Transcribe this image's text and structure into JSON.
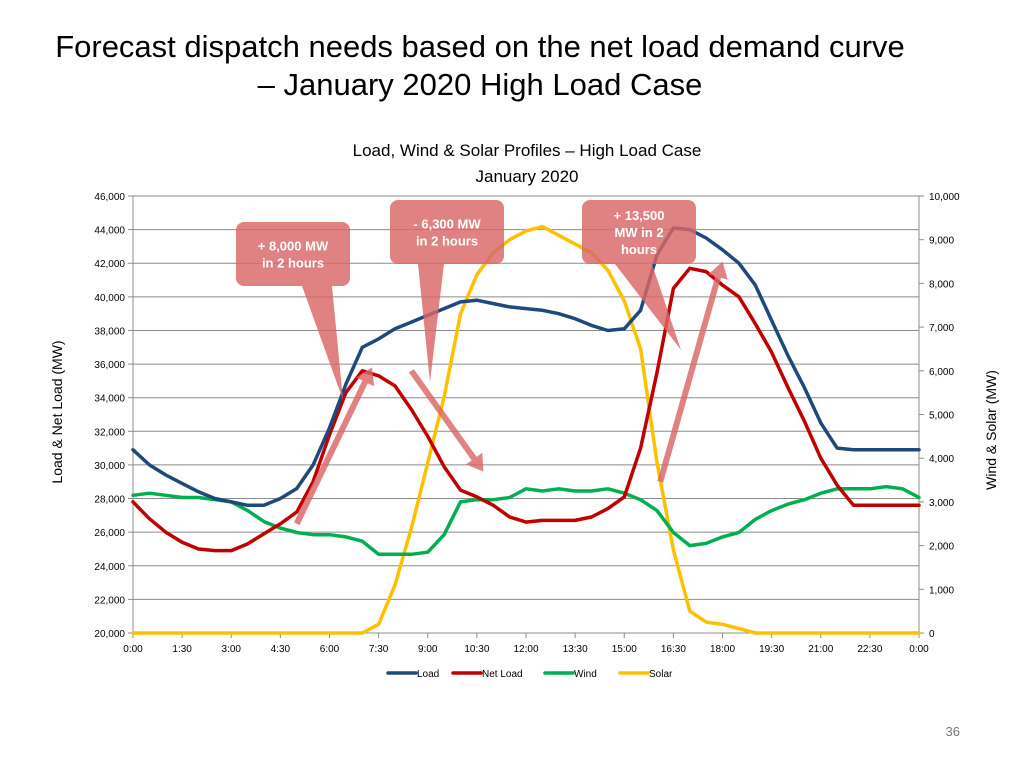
{
  "slide": {
    "title_line1": "Forecast dispatch needs based on the net load demand curve",
    "title_line2": "– January 2020 High Load Case",
    "page_number": "36"
  },
  "chart_data": {
    "type": "line",
    "title": "Load, Wind & Solar Profiles – High Load Case",
    "subtitle": "January 2020",
    "ylabel": "Load & Net Load (MW)",
    "y2label": "Wind & Solar (MW)",
    "ylim": [
      20000,
      46000
    ],
    "y2lim": [
      0,
      10000
    ],
    "yticks": [
      "20,000",
      "22,000",
      "24,000",
      "26,000",
      "28,000",
      "30,000",
      "32,000",
      "34,000",
      "36,000",
      "38,000",
      "40,000",
      "42,000",
      "44,000",
      "46,000"
    ],
    "y2ticks": [
      "0",
      "1,000",
      "2,000",
      "3,000",
      "4,000",
      "5,000",
      "6,000",
      "7,000",
      "8,000",
      "9,000",
      "10,000"
    ],
    "xticks": [
      "0:00",
      "1:30",
      "3:00",
      "4:30",
      "6:00",
      "7:30",
      "9:00",
      "10:30",
      "12:00",
      "13:30",
      "15:00",
      "16:30",
      "18:00",
      "19:30",
      "21:00",
      "22:30",
      "0:00"
    ],
    "grid": true,
    "legend_position": "bottom",
    "x_hours": [
      0,
      0.5,
      1,
      1.5,
      2,
      2.5,
      3,
      3.5,
      4,
      4.5,
      5,
      5.5,
      6,
      6.5,
      7,
      7.5,
      8,
      8.5,
      9,
      9.5,
      10,
      10.5,
      11,
      11.5,
      12,
      12.5,
      13,
      13.5,
      14,
      14.5,
      15,
      15.5,
      16,
      16.5,
      17,
      17.5,
      18,
      18.5,
      19,
      19.5,
      20,
      20.5,
      21,
      21.5,
      22,
      22.5,
      23,
      23.5,
      24
    ],
    "series": [
      {
        "name": "Load",
        "axis": "left",
        "color": "#1f497d",
        "values": [
          30900,
          30000,
          29400,
          28900,
          28400,
          28000,
          27800,
          27600,
          27600,
          28000,
          28600,
          30000,
          32200,
          34800,
          37000,
          37500,
          38100,
          38500,
          38900,
          39300,
          39700,
          39800,
          39600,
          39400,
          39300,
          39200,
          39000,
          38700,
          38300,
          38000,
          38100,
          39200,
          42500,
          44100,
          44000,
          43500,
          42800,
          42000,
          40700,
          38600,
          36500,
          34600,
          32500,
          31000,
          30900,
          30900,
          30900,
          30900,
          30900
        ]
      },
      {
        "name": "Net Load",
        "axis": "left",
        "color": "#c00000",
        "values": [
          27800,
          26800,
          26000,
          25400,
          25000,
          24900,
          24900,
          25300,
          25900,
          26500,
          27200,
          29000,
          31800,
          34300,
          35600,
          35300,
          34700,
          33300,
          31700,
          29900,
          28500,
          28100,
          27600,
          26900,
          26600,
          26700,
          26700,
          26700,
          26900,
          27400,
          28100,
          31000,
          35500,
          40500,
          41700,
          41500,
          40700,
          40000,
          38400,
          36700,
          34600,
          32600,
          30400,
          28800,
          27600,
          27600,
          27600,
          27600,
          27600
        ]
      },
      {
        "name": "Wind",
        "axis": "right",
        "color": "#00b050",
        "values": [
          3150,
          3200,
          3150,
          3100,
          3100,
          3050,
          3000,
          2800,
          2550,
          2400,
          2300,
          2250,
          2250,
          2200,
          2100,
          1800,
          1800,
          1800,
          1850,
          2250,
          3000,
          3050,
          3050,
          3100,
          3300,
          3250,
          3300,
          3250,
          3250,
          3300,
          3200,
          3050,
          2800,
          2300,
          2000,
          2050,
          2200,
          2300,
          2600,
          2800,
          2950,
          3050,
          3200,
          3300,
          3300,
          3300,
          3350,
          3300,
          3100
        ]
      },
      {
        "name": "Solar",
        "axis": "right",
        "color": "#ffc000",
        "values": [
          0,
          0,
          0,
          0,
          0,
          0,
          0,
          0,
          0,
          0,
          0,
          0,
          0,
          0,
          0,
          200,
          1100,
          2400,
          3900,
          5400,
          7300,
          8200,
          8700,
          9000,
          9200,
          9300,
          9100,
          8900,
          8700,
          8300,
          7600,
          6500,
          3900,
          1900,
          500,
          250,
          200,
          100,
          0,
          0,
          0,
          0,
          0,
          0,
          0,
          0,
          0,
          0,
          0
        ]
      }
    ],
    "annotations": [
      {
        "text_lines": [
          "+ 8,000 MW",
          "in 2 hours"
        ],
        "arrow_from": [
          5,
          26500
        ],
        "arrow_to": [
          7.3,
          35800
        ]
      },
      {
        "text_lines": [
          "- 6,300 MW",
          "in 2 hours"
        ],
        "arrow_from": [
          8.5,
          35600
        ],
        "arrow_to": [
          10.7,
          29600
        ]
      },
      {
        "text_lines": [
          "+ 13,500",
          "MW in 2",
          "hours"
        ],
        "arrow_from": [
          16.1,
          29000
        ],
        "arrow_to": [
          18,
          42100
        ]
      }
    ]
  }
}
